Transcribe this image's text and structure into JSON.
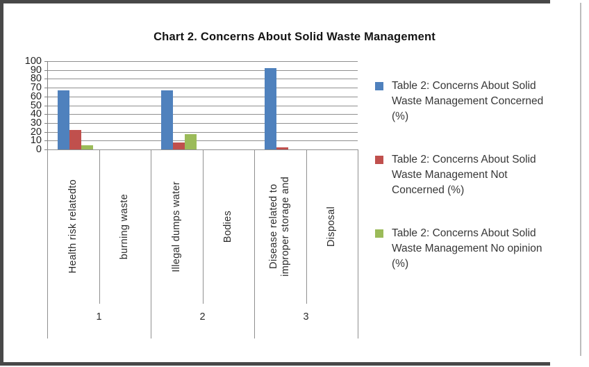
{
  "frame": {
    "border_color": "#484848",
    "right_edge_color": "#bdbdbd"
  },
  "chart_data": {
    "type": "bar",
    "title": "Chart 2. Concerns About Solid Waste Management",
    "categories": [
      {
        "lines": [
          "Health risk relatedto"
        ]
      },
      {
        "lines": [
          "burning waste"
        ]
      },
      {
        "lines": [
          "Illegal dumps water"
        ]
      },
      {
        "lines": [
          "Bodies"
        ]
      },
      {
        "lines": [
          "Disease related  to",
          "improper storage and"
        ]
      },
      {
        "lines": [
          "Disposal"
        ]
      }
    ],
    "group_labels": [
      "1",
      "2",
      "3"
    ],
    "series": [
      {
        "name": "Table 2: Concerns About Solid Waste Management Concerned (%)",
        "color": "#4F81BD",
        "values": [
          67,
          0,
          67,
          0,
          92,
          0
        ]
      },
      {
        "name": "Table 2: Concerns About Solid Waste Management Not Concerned (%)",
        "color": "#C0504D",
        "values": [
          22,
          0,
          8,
          0,
          2,
          0
        ]
      },
      {
        "name": "Table 2: Concerns About Solid Waste Management No opinion (%)",
        "color": "#9BBB59",
        "values": [
          5,
          0,
          17,
          0,
          0,
          0
        ]
      }
    ],
    "y_axis": {
      "min": 0,
      "max": 100,
      "step": 10,
      "ticks": [
        100,
        90,
        80,
        70,
        60,
        50,
        40,
        30,
        20,
        10,
        0
      ]
    },
    "legend": {
      "position": "right",
      "items": [
        {
          "color": "#4F81BD",
          "lines": [
            "Table 2: Concerns About Solid",
            "Waste Management Concerned",
            "(%)"
          ]
        },
        {
          "color": "#C0504D",
          "lines": [
            "Table 2: Concerns About Solid",
            "Waste Management Not",
            "Concerned (%)"
          ]
        },
        {
          "color": "#9BBB59",
          "lines": [
            "Table 2: Concerns About Solid",
            "Waste Management No opinion",
            "(%)"
          ]
        }
      ]
    },
    "grid": true,
    "plot_colors": {
      "gridline": "#8f8f8f",
      "axis": "#7f7f7f"
    }
  }
}
